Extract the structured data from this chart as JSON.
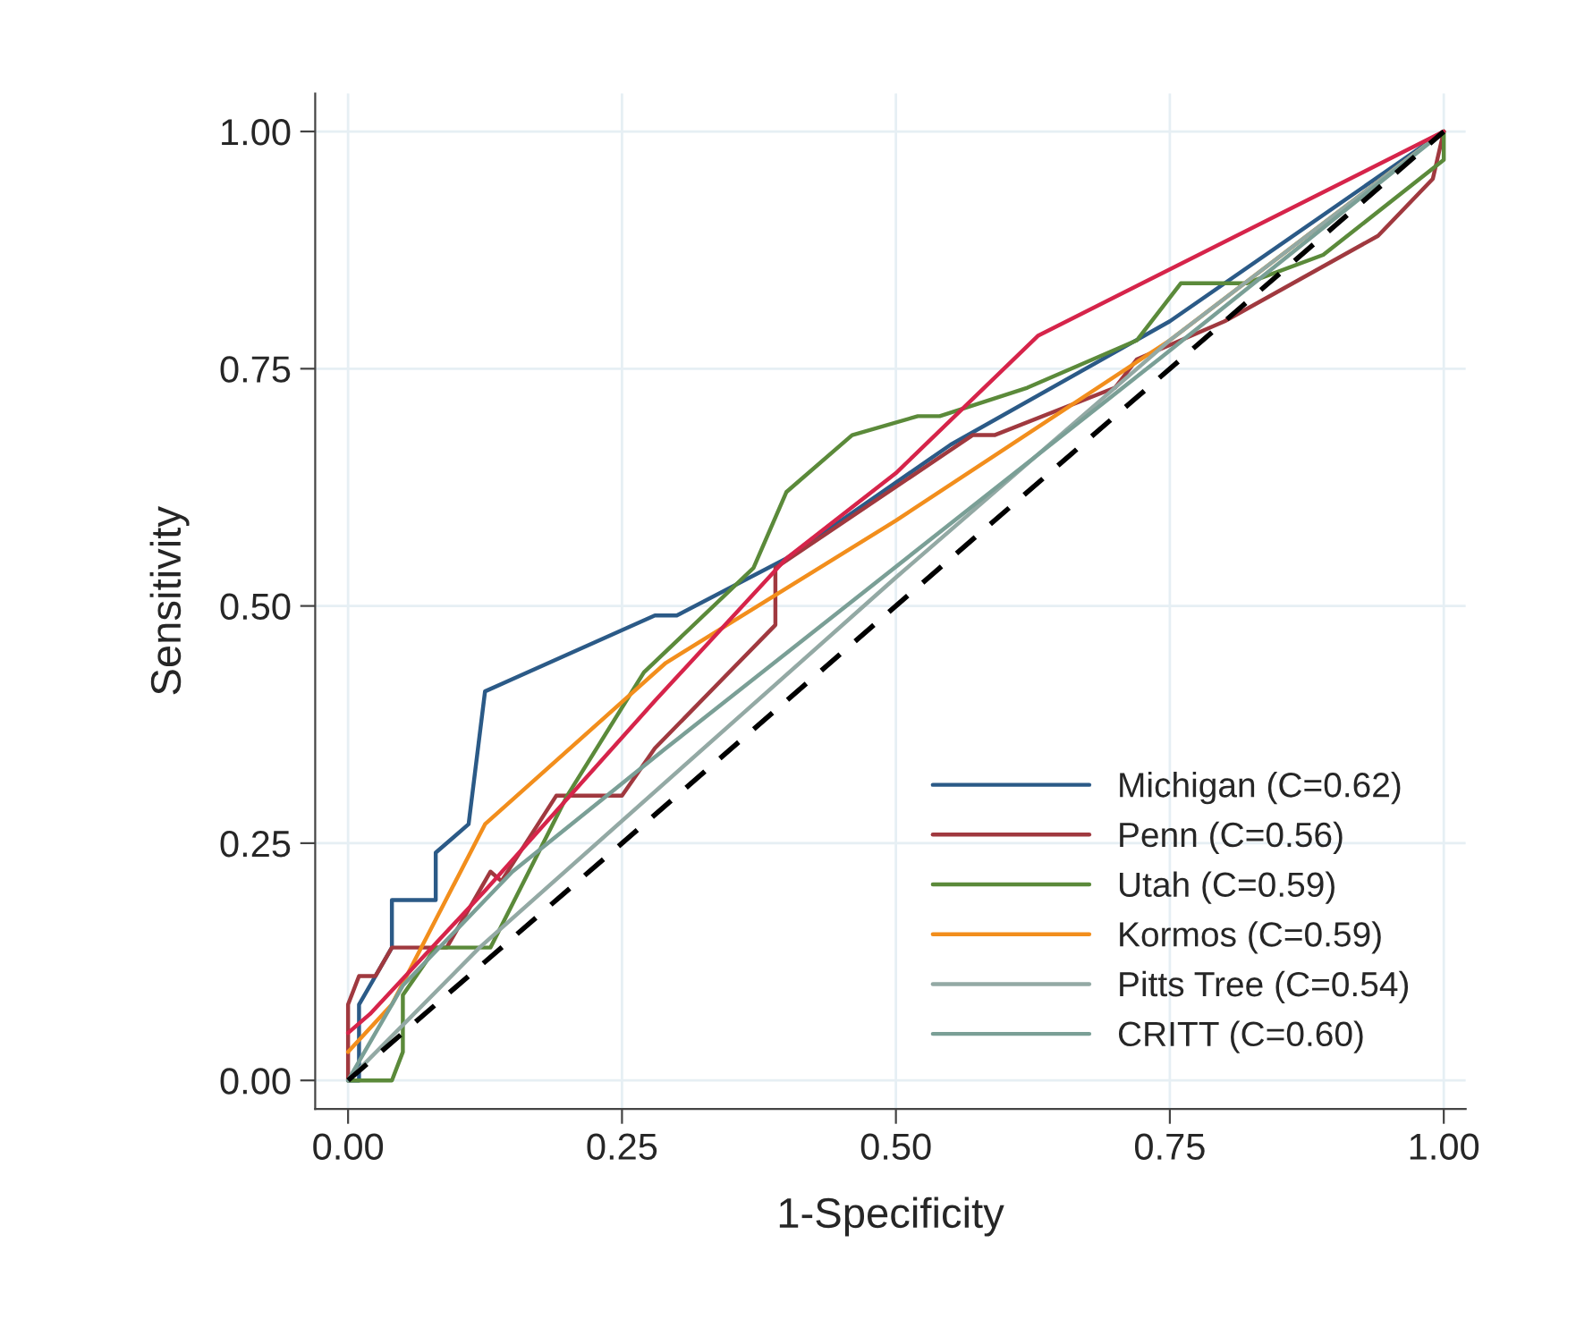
{
  "chart_data": {
    "type": "line",
    "xlabel": "1-Specificity",
    "ylabel": "Sensitivity",
    "xlim": [
      -0.03,
      1.02
    ],
    "ylim": [
      -0.03,
      1.04
    ],
    "xticks": [
      {
        "value": 0,
        "label": "0.00"
      },
      {
        "value": 0.25,
        "label": "0.25"
      },
      {
        "value": 0.5,
        "label": "0.50"
      },
      {
        "value": 0.75,
        "label": "0.75"
      },
      {
        "value": 1,
        "label": "1.00"
      }
    ],
    "yticks": [
      {
        "value": 0,
        "label": "0.00"
      },
      {
        "value": 0.25,
        "label": "0.25"
      },
      {
        "value": 0.5,
        "label": "0.50"
      },
      {
        "value": 0.75,
        "label": "0.75"
      },
      {
        "value": 1,
        "label": "1.00"
      }
    ],
    "grid": true,
    "legend": "bottom right",
    "marker": "none",
    "series": [
      {
        "name": "Michigan (C=0.62)",
        "color": "#2b5a87",
        "x": [
          0,
          0.01,
          0.01,
          0.04,
          0.04,
          0.08,
          0.08,
          0.11,
          0.125,
          0.28,
          0.3,
          0.4,
          0.55,
          0.75,
          1
        ],
        "values": [
          0,
          0,
          0.08,
          0.14,
          0.19,
          0.19,
          0.24,
          0.27,
          0.41,
          0.49,
          0.49,
          0.55,
          0.67,
          0.8,
          1
        ]
      },
      {
        "name": "Penn (C=0.56)",
        "color": "#a0393f",
        "x": [
          0,
          0,
          0.01,
          0.025,
          0.04,
          0.09,
          0.13,
          0.14,
          0.19,
          0.25,
          0.28,
          0.39,
          0.39,
          0.57,
          0.59,
          0.7,
          0.72,
          0.8,
          0.94,
          0.99,
          1
        ],
        "values": [
          0,
          0.08,
          0.11,
          0.11,
          0.14,
          0.14,
          0.22,
          0.21,
          0.3,
          0.3,
          0.35,
          0.48,
          0.54,
          0.68,
          0.68,
          0.73,
          0.76,
          0.8,
          0.89,
          0.95,
          1
        ]
      },
      {
        "name": "Utah (C=0.59)",
        "color": "#5b8a3a",
        "x": [
          0,
          0.04,
          0.05,
          0.05,
          0.08,
          0.13,
          0.2,
          0.27,
          0.37,
          0.4,
          0.46,
          0.52,
          0.54,
          0.62,
          0.72,
          0.76,
          0.82,
          0.89,
          1,
          1
        ],
        "values": [
          0,
          0,
          0.03,
          0.09,
          0.14,
          0.14,
          0.3,
          0.43,
          0.54,
          0.62,
          0.68,
          0.7,
          0.7,
          0.73,
          0.78,
          0.84,
          0.84,
          0.87,
          0.97,
          1
        ]
      },
      {
        "name": "Kormos (C=0.59)",
        "color": "#f28e1c",
        "x": [
          0,
          0.04,
          0.125,
          0.29,
          0.5,
          0.75,
          1
        ],
        "values": [
          0.03,
          0.08,
          0.27,
          0.44,
          0.59,
          0.78,
          1
        ]
      },
      {
        "name": "Pitts Tree (C=0.54)",
        "color": "#93a9a4",
        "x": [
          0,
          0.12,
          0.5,
          0.75,
          1
        ],
        "values": [
          0,
          0.14,
          0.53,
          0.78,
          1
        ]
      },
      {
        "name": "CRITT (C=0.60)",
        "color": "#7a9f96",
        "x": [
          0,
          0.05,
          0.15,
          0.29,
          0.74,
          1
        ],
        "values": [
          0,
          0.1,
          0.22,
          0.35,
          0.76,
          1
        ]
      },
      {
        "color": "#d6244a",
        "x": [
          0,
          0.02,
          0.125,
          0.28,
          0.4,
          0.5,
          0.63,
          1
        ],
        "values": [
          0.05,
          0.07,
          0.2,
          0.4,
          0.55,
          0.64,
          0.785,
          1
        ]
      },
      {
        "color": "#000000",
        "line_style": "dashed",
        "x": [
          0,
          1
        ],
        "values": [
          0,
          1
        ]
      }
    ]
  }
}
